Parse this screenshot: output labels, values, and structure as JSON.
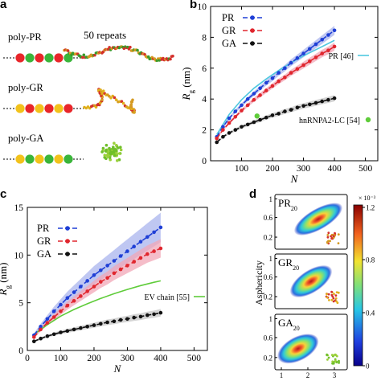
{
  "panel_a": {
    "letter": "a",
    "repeats_label": "50 repeats",
    "rows": [
      {
        "name": "poly-PR",
        "beads": [
          "#e8262a",
          "#3ab53a",
          "#e8262a",
          "#3ab53a",
          "#e8262a",
          "#3ab53a"
        ],
        "chain_colors": [
          "#d4302b",
          "#3a9a2a",
          "#d59a22"
        ]
      },
      {
        "name": "poly-GR",
        "beads": [
          "#f2c21b",
          "#e8262a",
          "#f2c21b",
          "#e8262a",
          "#f2c21b",
          "#e8262a"
        ],
        "chain_colors": [
          "#d4302b",
          "#d59a22",
          "#e0b01c"
        ]
      },
      {
        "name": "poly-GA",
        "beads": [
          "#f2c21b",
          "#3ab53a",
          "#f2c21b",
          "#3ab53a",
          "#f2c21b",
          "#3ab53a"
        ],
        "chain_colors": [
          "#6fbf2a",
          "#9ad03a"
        ]
      }
    ]
  },
  "chart_data": [
    {
      "panel": "b",
      "type": "line",
      "xlabel": "N",
      "ylabel": "R_g (nm)",
      "xlim": [
        0,
        540
      ],
      "ylim": [
        0,
        10
      ],
      "xticks": [
        100,
        200,
        300,
        400,
        500
      ],
      "yticks": [
        0,
        2,
        4,
        6,
        8,
        10
      ],
      "legend": [
        {
          "name": "PR",
          "color": "#1f3fd6"
        },
        {
          "name": "GR",
          "color": "#e0262e"
        },
        {
          "name": "GA",
          "color": "#111111"
        }
      ],
      "series": [
        {
          "name": "PR",
          "color": "#1f3fd6",
          "band": "#aab4ee",
          "x": [
            20,
            40,
            60,
            80,
            100,
            120,
            140,
            160,
            180,
            200,
            220,
            240,
            260,
            280,
            300,
            320,
            340,
            360,
            380,
            400
          ],
          "y": [
            1.55,
            2.2,
            2.75,
            3.2,
            3.6,
            4.0,
            4.35,
            4.7,
            5.05,
            5.35,
            5.7,
            6.0,
            6.35,
            6.65,
            6.95,
            7.25,
            7.55,
            7.85,
            8.15,
            8.45
          ]
        },
        {
          "name": "GR",
          "color": "#e0262e",
          "band": "#f2a7b7",
          "x": [
            20,
            40,
            60,
            80,
            100,
            120,
            140,
            160,
            180,
            200,
            220,
            240,
            260,
            280,
            300,
            320,
            340,
            360,
            380,
            400
          ],
          "y": [
            1.45,
            2.0,
            2.45,
            2.85,
            3.25,
            3.6,
            3.95,
            4.25,
            4.55,
            4.85,
            5.15,
            5.4,
            5.7,
            5.95,
            6.2,
            6.45,
            6.7,
            6.95,
            7.15,
            7.4
          ]
        },
        {
          "name": "GA",
          "color": "#111111",
          "band": "#c7c7c7",
          "x": [
            20,
            40,
            60,
            80,
            100,
            120,
            140,
            160,
            180,
            200,
            220,
            240,
            260,
            280,
            300,
            320,
            340,
            360,
            380,
            400
          ],
          "y": [
            1.2,
            1.55,
            1.8,
            2.0,
            2.2,
            2.35,
            2.5,
            2.65,
            2.8,
            2.95,
            3.05,
            3.2,
            3.3,
            3.45,
            3.55,
            3.65,
            3.75,
            3.85,
            3.95,
            4.05
          ]
        }
      ],
      "references": [
        {
          "label": "PR [46]",
          "color": "#4fc8e0",
          "x": [
            20,
            60,
            100,
            140,
            180,
            220,
            260,
            300,
            340,
            380,
            400
          ],
          "y": [
            1.7,
            3.0,
            3.95,
            4.7,
            5.3,
            5.85,
            6.35,
            6.8,
            7.2,
            7.6,
            7.8
          ]
        },
        {
          "label": "hnRNPA2-LC [54]",
          "color": "#5fcc3a",
          "x": [
            150
          ],
          "y": [
            2.9
          ]
        }
      ]
    },
    {
      "panel": "c",
      "type": "line",
      "xlabel": "N",
      "ylabel": "R_g (nm)",
      "xlim": [
        0,
        540
      ],
      "ylim": [
        0,
        15
      ],
      "xticks": [
        0,
        100,
        200,
        300,
        400,
        500
      ],
      "yticks": [
        0,
        5,
        10,
        15
      ],
      "legend": [
        {
          "name": "PR",
          "color": "#1f3fd6"
        },
        {
          "name": "GR",
          "color": "#e0262e"
        },
        {
          "name": "GA",
          "color": "#111111"
        }
      ],
      "series": [
        {
          "name": "PR",
          "color": "#1f3fd6",
          "band": "#aab4ee",
          "x": [
            20,
            40,
            60,
            80,
            100,
            120,
            140,
            160,
            180,
            200,
            220,
            240,
            260,
            280,
            300,
            320,
            340,
            360,
            380,
            400
          ],
          "y": [
            1.6,
            2.5,
            3.3,
            4.1,
            4.8,
            5.5,
            6.1,
            6.7,
            7.3,
            7.9,
            8.4,
            8.9,
            9.4,
            9.9,
            10.4,
            10.9,
            11.4,
            11.9,
            12.4,
            12.9
          ]
        },
        {
          "name": "GR",
          "color": "#e0262e",
          "band": "#f2a7b7",
          "x": [
            20,
            40,
            60,
            80,
            100,
            120,
            140,
            160,
            180,
            200,
            220,
            240,
            260,
            280,
            300,
            320,
            340,
            360,
            380,
            400
          ],
          "y": [
            1.4,
            2.2,
            2.9,
            3.5,
            4.1,
            4.7,
            5.2,
            5.7,
            6.2,
            6.7,
            7.2,
            7.6,
            8.1,
            8.5,
            8.9,
            9.3,
            9.7,
            10.1,
            10.4,
            10.7
          ]
        },
        {
          "name": "GA",
          "color": "#111111",
          "band": "#c7c7c7",
          "x": [
            20,
            40,
            60,
            80,
            100,
            120,
            140,
            160,
            180,
            200,
            220,
            240,
            260,
            280,
            300,
            320,
            340,
            360,
            380,
            400
          ],
          "y": [
            0.95,
            1.25,
            1.5,
            1.7,
            1.9,
            2.05,
            2.2,
            2.35,
            2.5,
            2.65,
            2.8,
            2.95,
            3.05,
            3.2,
            3.3,
            3.45,
            3.55,
            3.7,
            3.8,
            3.95
          ]
        }
      ],
      "references": [
        {
          "label": "EV chain [55]",
          "color": "#5fcc3a",
          "x": [
            20,
            60,
            100,
            140,
            180,
            220,
            260,
            300,
            340,
            380,
            400
          ],
          "y": [
            1.7,
            2.7,
            3.6,
            4.3,
            4.9,
            5.45,
            5.95,
            6.4,
            6.8,
            7.15,
            7.3
          ]
        }
      ]
    },
    {
      "panel": "d",
      "type": "heatmap",
      "ylabel": "Asphericity",
      "xticks": [
        1,
        2,
        3
      ],
      "colorbar": {
        "exponent_label": "× 10⁻³",
        "ticks": [
          "1.2",
          "0.8",
          "0.4",
          "0"
        ],
        "range": [
          0,
          1.2
        ]
      },
      "subplots": [
        {
          "label": "PR",
          "subscript": "20",
          "yticks": [
            "1",
            "0.6",
            "0.2"
          ],
          "chain_colors": [
            "#d4302b",
            "#d59a22"
          ]
        },
        {
          "label": "GR",
          "subscript": "20",
          "yticks": [
            "1",
            "0.6",
            "0.2"
          ],
          "chain_colors": [
            "#d4302b",
            "#e0b01c"
          ]
        },
        {
          "label": "GA",
          "subscript": "20",
          "yticks": [
            "1",
            "0.6",
            "0.2"
          ],
          "chain_colors": [
            "#6fbf2a",
            "#9ad03a"
          ]
        }
      ]
    }
  ]
}
